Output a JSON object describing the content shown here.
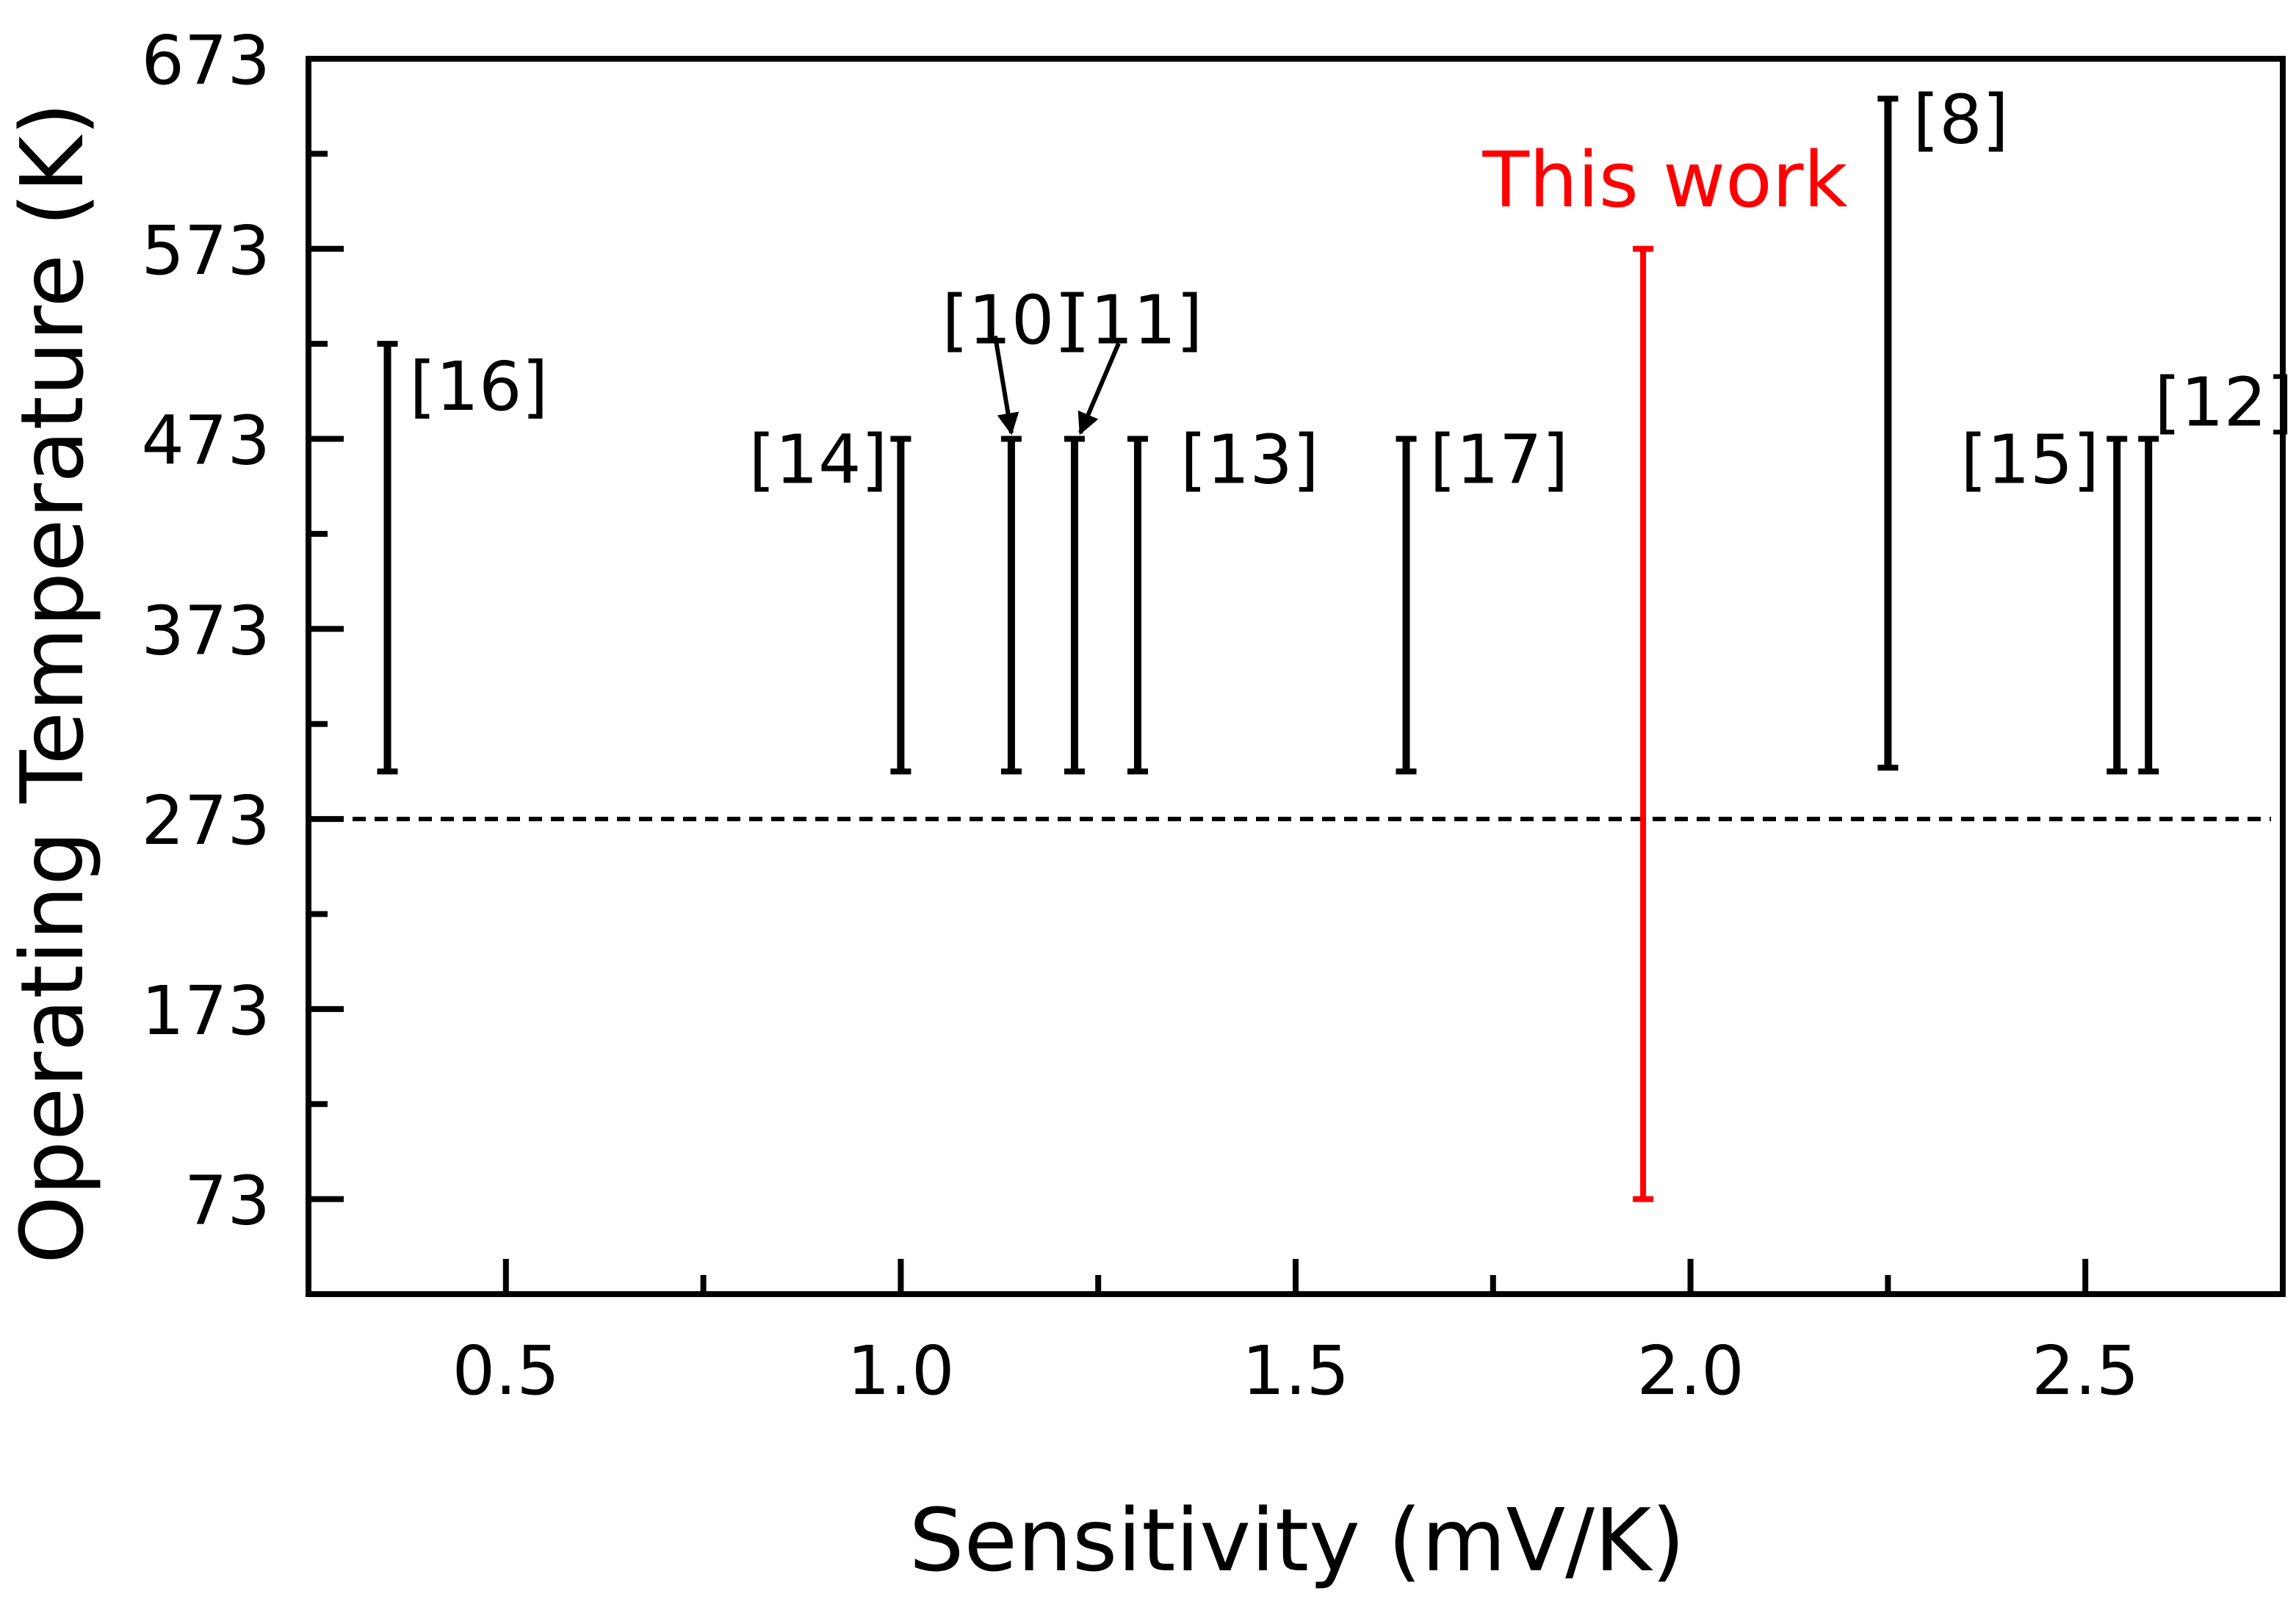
{
  "chart_data": {
    "type": "range",
    "title": "",
    "xlabel": "Sensitivity (mV/K)",
    "ylabel": "Operating Temperature (K)",
    "xlim": [
      0.25,
      2.75
    ],
    "ylim": [
      23,
      673
    ],
    "xticks": [
      0.5,
      1.0,
      1.5,
      2.0,
      2.5
    ],
    "xtick_labels": [
      "0.5",
      "1.0",
      "1.5",
      "2.0",
      "2.5"
    ],
    "xminor": [
      0.75,
      1.25,
      1.75,
      2.25
    ],
    "yticks": [
      73,
      173,
      273,
      373,
      473,
      573,
      673
    ],
    "ytick_labels": [
      "73",
      "173",
      "273",
      "373",
      "473",
      "573",
      "673"
    ],
    "yminor": [
      123,
      223,
      323,
      423,
      523,
      623
    ],
    "grid": false,
    "reference_line": {
      "y": 273,
      "style": "dashed"
    },
    "series": [
      {
        "label": "[16]",
        "x": 0.35,
        "ymin": 298,
        "ymax": 523,
        "color": "#000000"
      },
      {
        "label": "[14]",
        "x": 1.0,
        "ymin": 298,
        "ymax": 473,
        "color": "#000000"
      },
      {
        "label": "[10]",
        "x": 1.14,
        "ymin": 298,
        "ymax": 473,
        "color": "#000000"
      },
      {
        "label": "[11]",
        "x": 1.22,
        "ymin": 298,
        "ymax": 473,
        "color": "#000000"
      },
      {
        "label": "[13]",
        "x": 1.3,
        "ymin": 298,
        "ymax": 473,
        "color": "#000000"
      },
      {
        "label": "[17]",
        "x": 1.64,
        "ymin": 298,
        "ymax": 473,
        "color": "#000000"
      },
      {
        "label": "This work",
        "x": 1.94,
        "ymin": 73,
        "ymax": 573,
        "color": "#ff0000"
      },
      {
        "label": "[8]",
        "x": 2.25,
        "ymin": 300,
        "ymax": 652,
        "color": "#000000"
      },
      {
        "label": "[15]",
        "x": 2.54,
        "ymin": 298,
        "ymax": 473,
        "color": "#000000"
      },
      {
        "label": "[12]",
        "x": 2.58,
        "ymin": 298,
        "ymax": 473,
        "color": "#000000"
      }
    ]
  }
}
